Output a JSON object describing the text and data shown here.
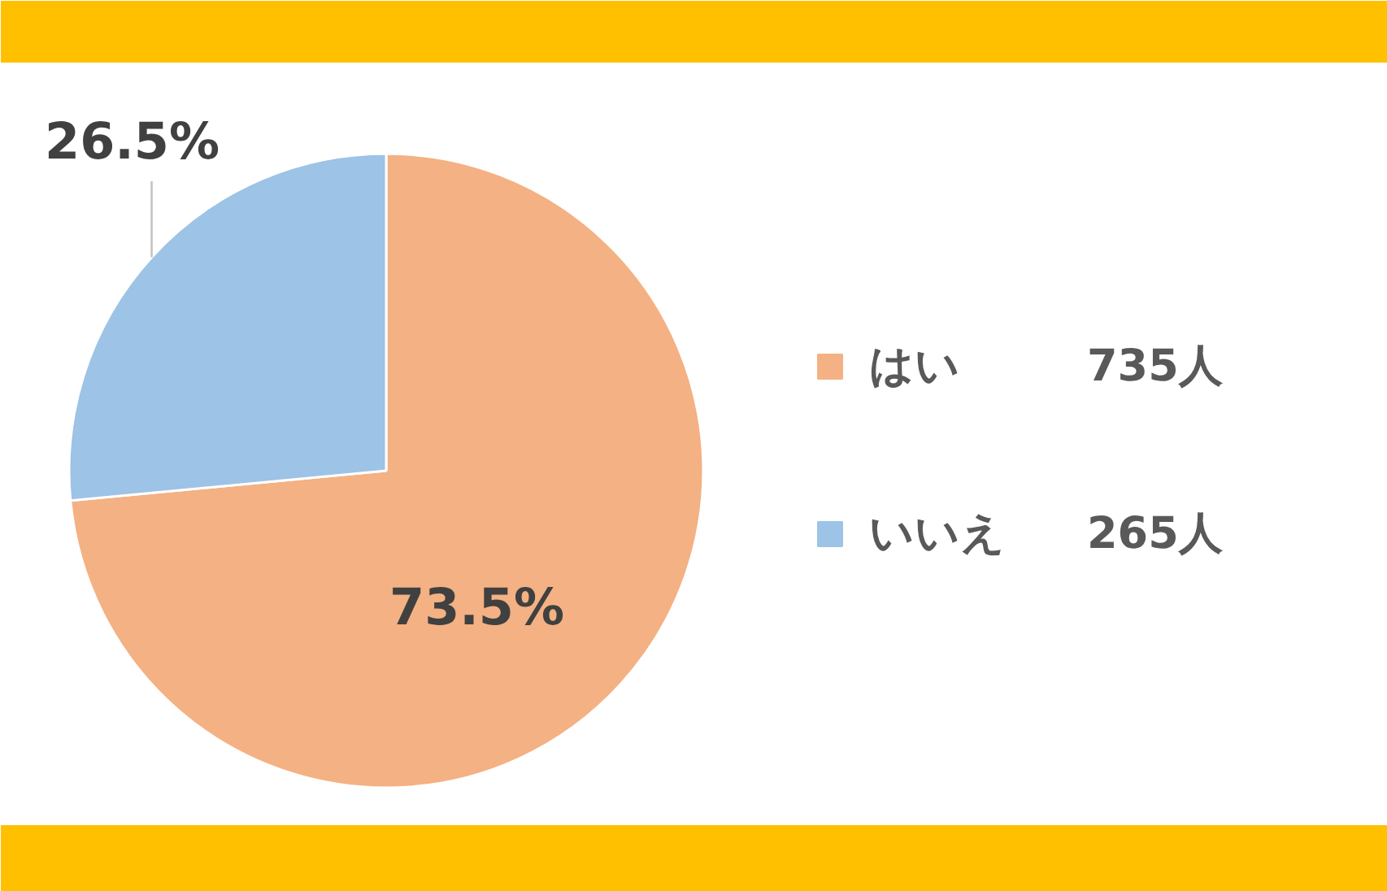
{
  "chart_data": {
    "type": "pie",
    "categories": [
      "はい",
      "いいえ"
    ],
    "values": [
      73.5,
      26.5
    ],
    "colors": [
      "#f4b183",
      "#9dc3e6"
    ],
    "value_labels": [
      "73.5%",
      "26.5%"
    ],
    "legend": "right",
    "annotations": [
      "735人",
      "265人"
    ]
  }
}
